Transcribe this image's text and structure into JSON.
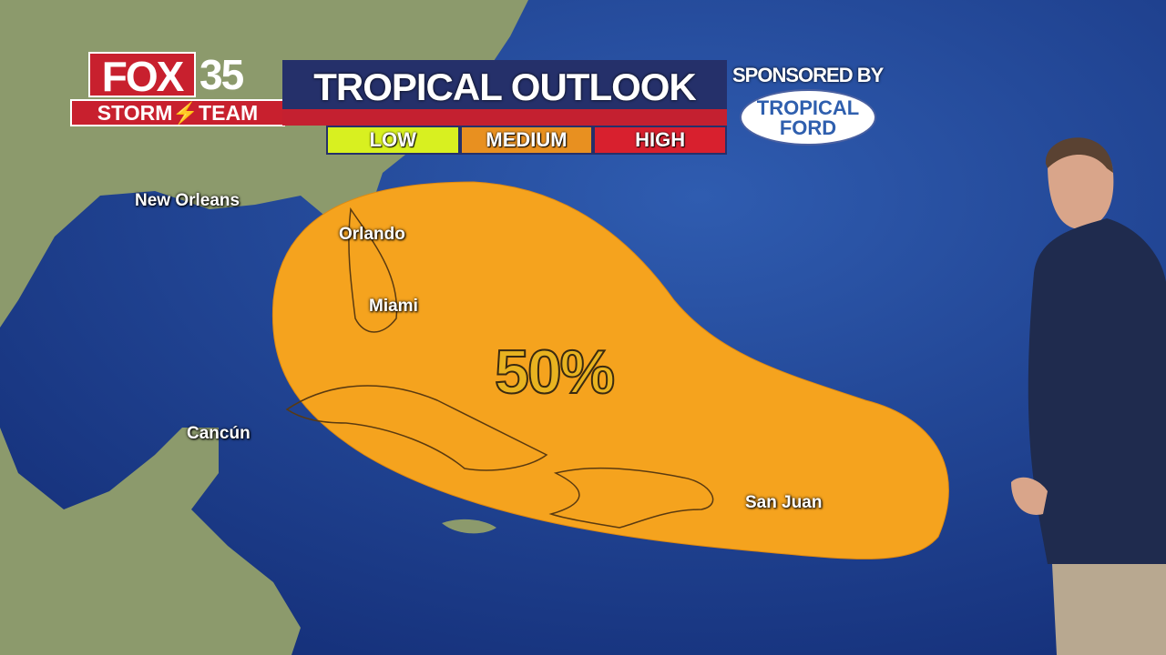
{
  "branding": {
    "station": "FOX",
    "channel": "35",
    "team": "STORM⚡TEAM"
  },
  "title": "TROPICAL OUTLOOK",
  "legend": [
    {
      "label": "LOW",
      "color": "#d8f020"
    },
    {
      "label": "MEDIUM",
      "color": "#e89020"
    },
    {
      "label": "HIGH",
      "color": "#d8202e"
    }
  ],
  "sponsor": {
    "label": "SPONSORED BY",
    "name_line1": "TROPICAL",
    "name_line2": "FORD"
  },
  "map": {
    "cities": [
      "New Orleans",
      "Orlando",
      "Miami",
      "Cancún",
      "San Juan"
    ],
    "outlook_area": {
      "chance": "50%",
      "level": "MEDIUM",
      "color": "#f5a31e"
    }
  },
  "colors": {
    "ocean": "#1f3f8f",
    "land": "#8a9a6a",
    "cone": "#f5a31e"
  }
}
